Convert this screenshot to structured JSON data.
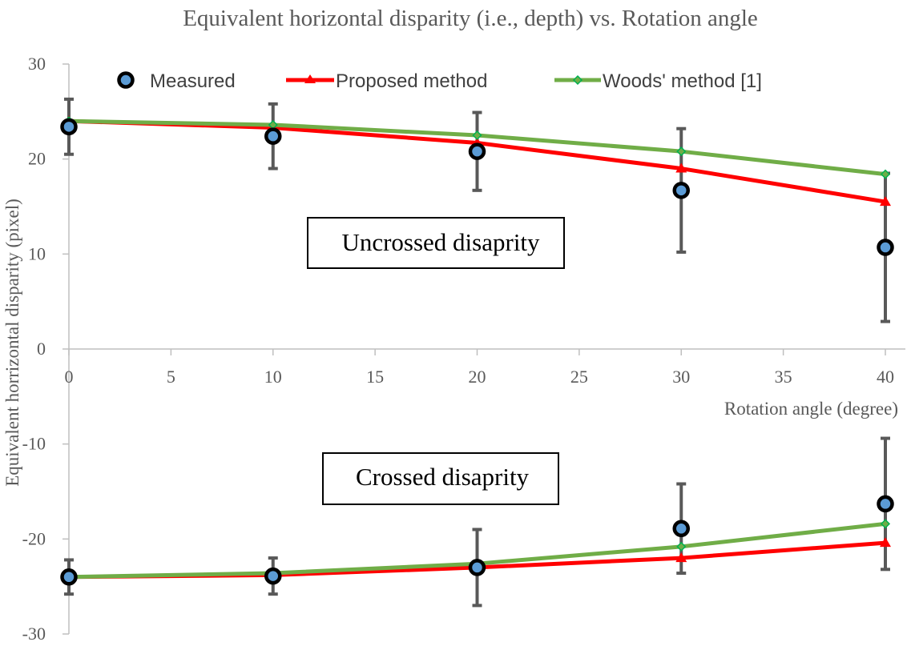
{
  "chart_data": {
    "type": "line",
    "title": "Equivalent horizontal disparity (i.e., depth) vs. Rotation angle",
    "xlabel": "Rotation angle (degree)",
    "ylabel": "Equivalent horrizontal disparity (pixel)",
    "xlim": [
      0,
      40
    ],
    "ylim": [
      -30,
      30
    ],
    "x_ticks": [
      "0",
      "5",
      "10",
      "15",
      "20",
      "25",
      "30",
      "35",
      "40"
    ],
    "y_ticks": [
      "30",
      "20",
      "10",
      "0",
      "-10",
      "-20",
      "-30"
    ],
    "grid": false,
    "legend_position": "top",
    "annotations": [
      "Uncrossed disaprity",
      "Crossed disaprity"
    ],
    "series": [
      {
        "name": "Measured",
        "marker": "circle",
        "color": "#5b9bd5",
        "edge_color": "#000000",
        "x": [
          0,
          10,
          20,
          30,
          40,
          0,
          10,
          20,
          30,
          40
        ],
        "y": [
          23.4,
          22.4,
          20.8,
          16.7,
          10.7,
          -24.0,
          -23.9,
          -23.0,
          -18.9,
          -16.3
        ],
        "error": [
          2.9,
          3.4,
          4.1,
          6.5,
          7.8,
          1.8,
          1.9,
          4.0,
          4.7,
          6.9
        ],
        "error_color": "#595959"
      },
      {
        "name": "Proposed method",
        "marker": "triangle",
        "color": "#ff0000",
        "x": [
          0,
          10,
          20,
          30,
          40
        ],
        "y_upper": [
          24.0,
          23.3,
          21.7,
          19.0,
          15.5
        ],
        "y_lower": [
          -24.0,
          -23.8,
          -23.0,
          -22.0,
          -20.4
        ]
      },
      {
        "name": "Woods' method [1]",
        "marker": "diamond",
        "color": "#70ad47",
        "marker_color": "#00b050",
        "x": [
          0,
          10,
          20,
          30,
          40
        ],
        "y_upper": [
          24.0,
          23.6,
          22.5,
          20.8,
          18.4
        ],
        "y_lower": [
          -24.0,
          -23.6,
          -22.6,
          -20.8,
          -18.4
        ]
      }
    ]
  }
}
